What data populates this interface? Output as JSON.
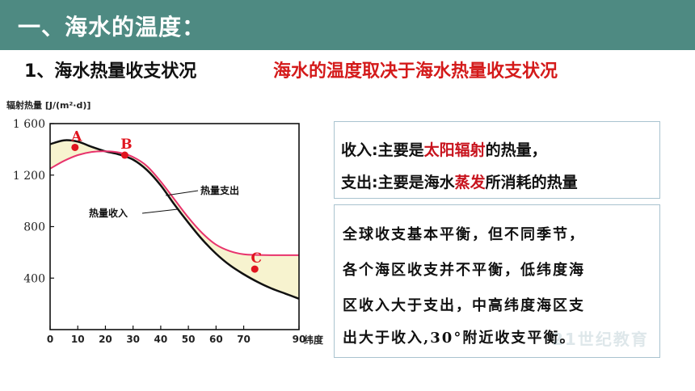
{
  "header": {
    "title": "一、海水的温度："
  },
  "section": {
    "subheading": "1、海水热量收支状况",
    "main_point": "海水的温度取决于海水热量收支状况"
  },
  "info_box": {
    "income_prefix": "收入:主要是",
    "income_highlight": "太阳辐射",
    "income_suffix": "的热量，",
    "expense_prefix": "支出:主要是海水",
    "expense_highlight": "蒸发",
    "expense_suffix": "所消耗的热量"
  },
  "summary_box": {
    "lines": [
      "全球收支基本平衡，但不同季节，",
      "各个海区收支并不平衡，低纬度海",
      "区收入大于支出，中高纬度海区支",
      "出大于收入,30°附近收支平衡。"
    ]
  },
  "watermark": "21世纪教育",
  "colors": {
    "title_bar": "#4e8a82",
    "highlight": "#c8141e",
    "income_curve": "#e8336d",
    "surplus_fill": "#f7f3cf"
  },
  "chart_data": {
    "type": "line",
    "ylabel": "辐射热量 [J/(m²·d)]",
    "xlabel": "纬度",
    "xlim": [
      0,
      90
    ],
    "ylim": [
      0,
      1600
    ],
    "x_ticks": [
      "0",
      "10",
      "20",
      "30",
      "40",
      "50",
      "60",
      "70",
      "90"
    ],
    "y_ticks": [
      "400",
      "800",
      "1 200",
      "1 600"
    ],
    "series": [
      {
        "name": "热量收入",
        "x": [
          0,
          5,
          10,
          15,
          20,
          25,
          30,
          35,
          40,
          45,
          50,
          55,
          60,
          65,
          70,
          75,
          80,
          85,
          90
        ],
        "values": [
          1250,
          1310,
          1355,
          1380,
          1385,
          1375,
          1340,
          1270,
          1150,
          1010,
          870,
          750,
          660,
          610,
          585,
          580,
          578,
          578,
          578
        ]
      },
      {
        "name": "热量支出",
        "x": [
          0,
          5,
          10,
          15,
          20,
          25,
          30,
          35,
          40,
          45,
          50,
          55,
          60,
          65,
          70,
          75,
          80,
          85,
          90
        ],
        "values": [
          1440,
          1470,
          1460,
          1420,
          1385,
          1360,
          1320,
          1240,
          1120,
          970,
          830,
          700,
          590,
          500,
          430,
          370,
          320,
          280,
          240
        ]
      }
    ],
    "annotations": [
      {
        "label": "A",
        "x": 9,
        "y": 1415
      },
      {
        "label": "B",
        "x": 27,
        "y": 1355
      },
      {
        "label": "C",
        "x": 74,
        "y": 470
      }
    ]
  }
}
